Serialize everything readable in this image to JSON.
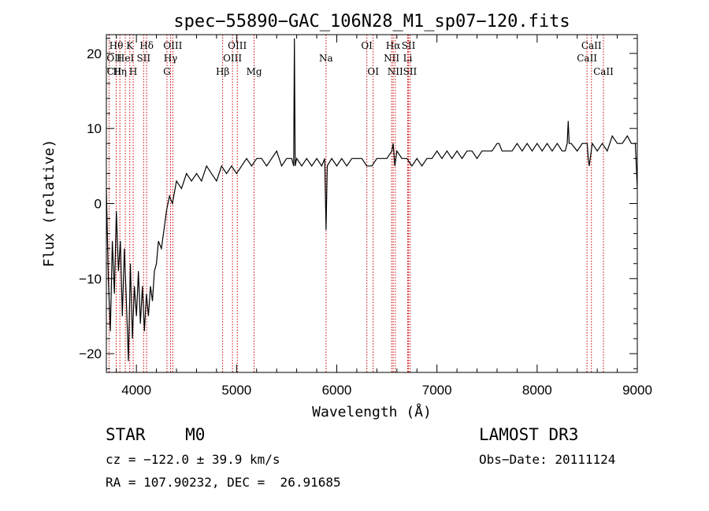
{
  "chart_data": {
    "type": "line",
    "title": "spec−55890−GAC_106N28_M1_sp07−120.fits",
    "xlabel": "Wavelength (Å)",
    "ylabel": "Flux (relative)",
    "xlim": [
      3700,
      9000
    ],
    "ylim": [
      -22.5,
      22.5
    ],
    "xticks": [
      {
        "v": 4000,
        "label": "4000"
      },
      {
        "v": 5000,
        "label": "5000"
      },
      {
        "v": 6000,
        "label": "6000"
      },
      {
        "v": 7000,
        "label": "7000"
      },
      {
        "v": 8000,
        "label": "8000"
      },
      {
        "v": 9000,
        "label": "9000"
      }
    ],
    "yticks": [
      {
        "v": 20,
        "label": "20"
      },
      {
        "v": 10,
        "label": "10"
      },
      {
        "v": 0,
        "label": "0"
      },
      {
        "v": -10,
        "label": "−10"
      },
      {
        "v": -20,
        "label": "−20"
      }
    ],
    "grid": false,
    "line_color": "#000000",
    "marker_color": "#cc0000",
    "spectrum": {
      "x": [
        3700,
        3720,
        3740,
        3760,
        3780,
        3800,
        3820,
        3840,
        3860,
        3880,
        3900,
        3920,
        3940,
        3960,
        3980,
        4000,
        4020,
        4040,
        4060,
        4080,
        4100,
        4120,
        4140,
        4160,
        4180,
        4200,
        4220,
        4250,
        4280,
        4300,
        4330,
        4360,
        4400,
        4450,
        4500,
        4550,
        4600,
        4650,
        4700,
        4750,
        4800,
        4850,
        4900,
        4950,
        5000,
        5050,
        5100,
        5150,
        5200,
        5250,
        5300,
        5350,
        5400,
        5450,
        5500,
        5550,
        5570,
        5577,
        5585,
        5600,
        5650,
        5700,
        5750,
        5800,
        5850,
        5880,
        5893,
        5905,
        5950,
        6000,
        6050,
        6100,
        6150,
        6200,
        6250,
        6300,
        6350,
        6400,
        6450,
        6500,
        6550,
        6563,
        6580,
        6600,
        6650,
        6700,
        6750,
        6800,
        6850,
        6900,
        6950,
        7000,
        7050,
        7100,
        7150,
        7200,
        7250,
        7300,
        7350,
        7400,
        7450,
        7500,
        7550,
        7600,
        7620,
        7650,
        7700,
        7750,
        7800,
        7850,
        7900,
        7950,
        8000,
        8050,
        8100,
        8150,
        8200,
        8250,
        8280,
        8300,
        8310,
        8320,
        8340,
        8400,
        8450,
        8500,
        8510,
        8520,
        8550,
        8600,
        8650,
        8700,
        8750,
        8800,
        8850,
        8900,
        8940,
        8960,
        8980,
        9000
      ],
      "y": [
        2,
        -10,
        -17,
        -5,
        -12,
        -1,
        -9,
        -5,
        -15,
        -6,
        -13,
        -21,
        -8,
        -18,
        -11,
        -15,
        -9,
        -16,
        -11,
        -17,
        -12,
        -15,
        -11,
        -13,
        -9,
        -8,
        -5,
        -6,
        -3,
        -1,
        1,
        0,
        3,
        2,
        4,
        3,
        4,
        3,
        5,
        4,
        3,
        5,
        4,
        5,
        4,
        5,
        6,
        5,
        6,
        6,
        5,
        6,
        7,
        5,
        6,
        6,
        5,
        22,
        5,
        6,
        5,
        6,
        5,
        6,
        5,
        6,
        -3.5,
        5,
        6,
        5,
        6,
        5,
        6,
        6,
        6,
        5,
        5,
        6,
        6,
        6,
        7,
        8,
        5,
        7,
        6,
        6,
        5,
        6,
        5,
        6,
        6,
        7,
        6,
        7,
        6,
        7,
        6,
        7,
        7,
        6,
        7,
        7,
        7,
        8,
        8,
        7,
        7,
        7,
        8,
        7,
        8,
        7,
        8,
        7,
        8,
        7,
        8,
        7,
        7,
        8,
        11,
        8,
        8,
        7,
        8,
        8,
        6,
        5,
        8,
        7,
        8,
        7,
        9,
        8,
        8,
        9,
        8,
        8,
        8,
        2
      ]
    },
    "lines": [
      {
        "name": "Hθ",
        "x": 3798,
        "row": 1
      },
      {
        "name": "OII",
        "x": 3727,
        "row": 2
      },
      {
        "name": "CII",
        "x": 3700,
        "row": 3
      },
      {
        "name": "Hη",
        "x": 3835,
        "row": 3
      },
      {
        "name": "HeI",
        "x": 3889,
        "row": 2
      },
      {
        "name": "K",
        "x": 3934,
        "row": 1
      },
      {
        "name": "SII",
        "x": 4072,
        "row": 2
      },
      {
        "name": "H",
        "x": 3968,
        "row": 3
      },
      {
        "name": "Hδ",
        "x": 4102,
        "row": 1
      },
      {
        "name": "OIII",
        "x": 4363,
        "row": 1
      },
      {
        "name": "Hγ",
        "x": 4341,
        "row": 2
      },
      {
        "name": "G",
        "x": 4305,
        "row": 3
      },
      {
        "name": "Hβ",
        "x": 4861,
        "row": 3
      },
      {
        "name": "OIII",
        "x": 5007,
        "row": 1
      },
      {
        "name": "OIII",
        "x": 4959,
        "row": 2
      },
      {
        "name": "Mg",
        "x": 5175,
        "row": 3
      },
      {
        "name": "Na",
        "x": 5893,
        "row": 2
      },
      {
        "name": "OI",
        "x": 6300,
        "row": 1
      },
      {
        "name": "OI",
        "x": 6363,
        "row": 3
      },
      {
        "name": "Hα",
        "x": 6563,
        "row": 1
      },
      {
        "name": "NII",
        "x": 6548,
        "row": 2
      },
      {
        "name": "NII",
        "x": 6584,
        "row": 3
      },
      {
        "name": "SII",
        "x": 6716,
        "row": 1
      },
      {
        "name": "Li",
        "x": 6708,
        "row": 2
      },
      {
        "name": "SII",
        "x": 6731,
        "row": 3
      },
      {
        "name": "CaII",
        "x": 8542,
        "row": 1
      },
      {
        "name": "CaII",
        "x": 8498,
        "row": 2
      },
      {
        "name": "CaII",
        "x": 8662,
        "row": 3
      }
    ]
  },
  "info": {
    "object_class": "STAR    M0",
    "survey": "LAMOST DR3",
    "cz": "cz = −122.0 ± 39.9 km/s",
    "obs_date": "Obs−Date: 20111124",
    "radec": "RA = 107.90232, DEC =  26.91685"
  }
}
